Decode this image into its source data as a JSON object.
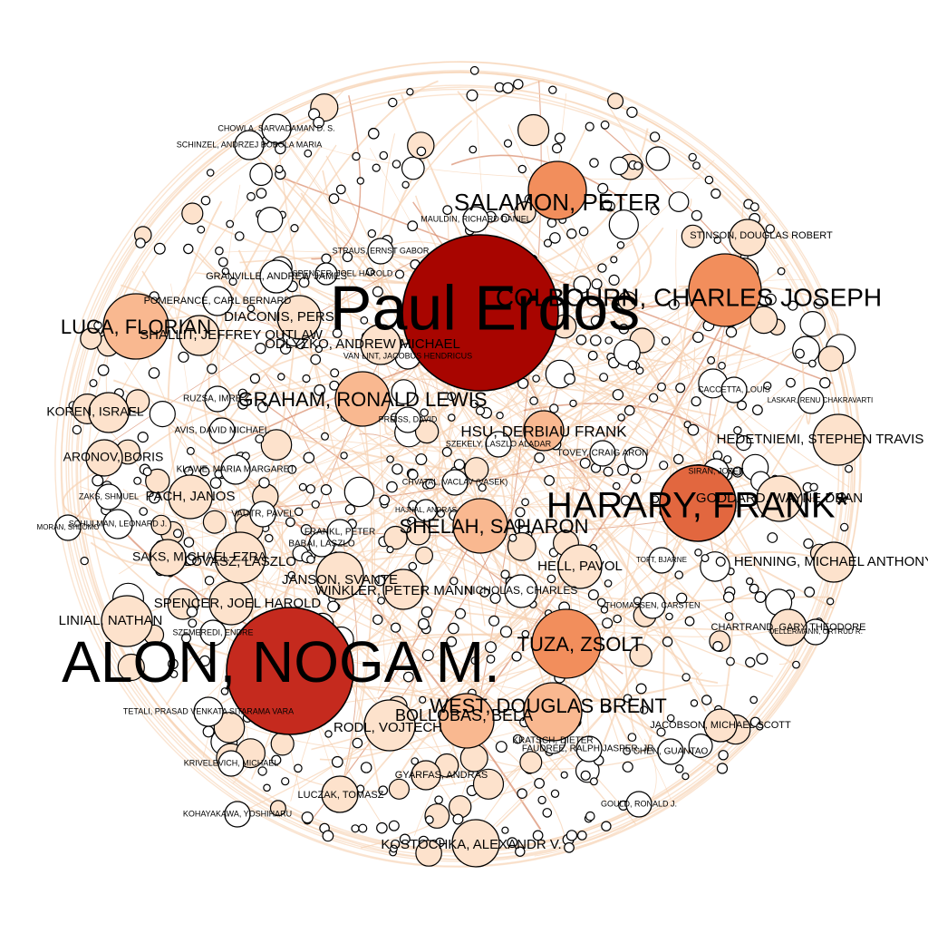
{
  "colors": {
    "background": "#ffffff",
    "edge": "#f6d2b2",
    "edge_strong": "#d98a6a",
    "node_stroke": "#000000",
    "level_0": "#ffffff",
    "level_1": "#fde2cc",
    "level_2": "#f9b890",
    "level_3": "#f28e5c",
    "level_4": "#e2673f",
    "level_5": "#c52a1e",
    "level_6": "#a80500"
  },
  "nodes": [
    {
      "id": "erdos",
      "label": "Paul Erdos",
      "level": 6
    },
    {
      "id": "alon",
      "label": "ALON, NOGA M.",
      "level": 5
    },
    {
      "id": "harary",
      "label": "HARARY, FRANK*",
      "level": 4
    },
    {
      "id": "colbourn",
      "label": "COLBOURN, CHARLES JOSEPH",
      "level": 3
    },
    {
      "id": "salamon",
      "label": "SALAMON, PETER",
      "level": 3
    },
    {
      "id": "graham",
      "label": "GRAHAM, RONALD LEWIS",
      "level": 2
    },
    {
      "id": "shelah",
      "label": "SHELAH, SAHARON",
      "level": 2
    },
    {
      "id": "tuza",
      "label": "TUZA, ZSOLT",
      "level": 3
    },
    {
      "id": "luca",
      "label": "LUCA, FLORIAN",
      "level": 2
    },
    {
      "id": "west",
      "label": "WEST, DOUGLAS BRENT",
      "level": 2
    },
    {
      "id": "bollobas",
      "label": "BOLLOBAS, BELA",
      "level": 2
    },
    {
      "id": "hsu",
      "label": "HSU, DERBIAU FRANK",
      "level": 2
    },
    {
      "id": "hedetniemi",
      "label": "HEDETNIEMI, STEPHEN TRAVIS",
      "level": 1
    },
    {
      "id": "goddard",
      "label": "GODDARD, WAYNE DEAN",
      "level": 1
    },
    {
      "id": "hell",
      "label": "HELL, PAVOL",
      "level": 1
    },
    {
      "id": "henning",
      "label": "HENNING, MICHAEL ANTHONY",
      "level": 1
    },
    {
      "id": "linial",
      "label": "LINIAL, NATHAN",
      "level": 1
    },
    {
      "id": "spencer",
      "label": "SPENCER, JOEL HAROLD",
      "level": 1
    },
    {
      "id": "janson",
      "label": "JANSON, SVANTE",
      "level": 1
    },
    {
      "id": "winkler",
      "label": "WINKLER, PETER MANN",
      "level": 1
    },
    {
      "id": "lovasz",
      "label": "LOVASZ, LASZLO",
      "level": 1
    },
    {
      "id": "pach",
      "label": "PACH, JANOS",
      "level": 1
    },
    {
      "id": "kostochka",
      "label": "KOSTOCHKA, ALEXANDR V.",
      "level": 1
    },
    {
      "id": "rodl",
      "label": "RODL, VOJTECH",
      "level": 1
    },
    {
      "id": "odlyzko",
      "label": "ODLYZKO, ANDREW MICHAEL",
      "level": 1
    },
    {
      "id": "diaconis",
      "label": "DIACONIS, PERSI",
      "level": 1
    },
    {
      "id": "shallit",
      "label": "SHALLIT, JEFFREY OUTLAW",
      "level": 1
    },
    {
      "id": "koren",
      "label": "KOREN, ISRAEL",
      "level": 1
    },
    {
      "id": "aronov",
      "label": "ARONOV, BORIS",
      "level": 1
    },
    {
      "id": "saks",
      "label": "SAKS, MICHAEL EZRA",
      "level": 1
    },
    {
      "id": "luczak",
      "label": "LUCZAK, TOMASZ",
      "level": 1
    },
    {
      "id": "gyarfas",
      "label": "GYARFAS, ANDRAS",
      "level": 1
    },
    {
      "id": "chartrand",
      "label": "CHARTRAND, GARY THEODORE",
      "level": 1
    },
    {
      "id": "jacobson",
      "label": "JACOBSON, MICHAEL SCOTT",
      "level": 1
    },
    {
      "id": "stinson",
      "label": "STINSON, DOUGLAS ROBERT",
      "level": 1
    },
    {
      "id": "laskar",
      "label": "LASKAR, RENU CHAKRAVARTI",
      "level": 0
    },
    {
      "id": "nicholas",
      "label": "NICHOLAS, CHARLES",
      "level": 0
    },
    {
      "id": "chvatal",
      "label": "CHVATAL, VACLAV (VASEK)",
      "level": 0
    },
    {
      "id": "krivelevich",
      "label": "KRIVELEVICH, MICHAEL",
      "level": 0
    },
    {
      "id": "kohayakawa",
      "label": "KOHAYAKAWA, YOSHIHARU",
      "level": 0
    },
    {
      "id": "tetali",
      "label": "TETALI, PRASAD VENKATA SITARAMA VARA",
      "level": 0
    },
    {
      "id": "szemeredi",
      "label": "SZEMEREDI, ENDRE",
      "level": 0
    },
    {
      "id": "moran",
      "label": "MORAN, SHLOMO",
      "level": 0
    },
    {
      "id": "schulman",
      "label": "SCHULMAN, LEONARD J.",
      "level": 0
    },
    {
      "id": "zaks",
      "label": "ZAKS, SHMUEL",
      "level": 0
    },
    {
      "id": "klawe",
      "label": "KLAWE, MARIA MARGARET",
      "level": 0
    },
    {
      "id": "chowla",
      "label": "CHOWLA, SARVADAMAN D. S.",
      "level": 0
    },
    {
      "id": "schinzel",
      "label": "SCHINZEL, ANDRZEJ BOBOLA MARIA",
      "level": 0
    },
    {
      "id": "pomerance",
      "label": "POMERANCE, CARL BERNARD",
      "level": 0
    },
    {
      "id": "granville",
      "label": "GRANVILLE, ANDREW JAMES",
      "level": 0
    },
    {
      "id": "ruzsa",
      "label": "RUZSA, IMRE Z.",
      "level": 0
    },
    {
      "id": "vanlint",
      "label": "VAN LINT, JACOBUS HENDRICUS",
      "level": 0
    },
    {
      "id": "straus",
      "label": "STRAUS, ERNST GABOR",
      "level": 0
    },
    {
      "id": "maudlin",
      "label": "MAULDIN, RICHARD DANIEL",
      "level": 0
    },
    {
      "id": "spencer2",
      "label": "SPENCER, JOEL HAROLD",
      "level": 0
    },
    {
      "id": "sirans",
      "label": "SIRAN, JOZEF",
      "level": 0
    },
    {
      "id": "caccetta",
      "label": "CACCETTA, LOUIS",
      "level": 0
    },
    {
      "id": "toft",
      "label": "TOFT, BJARNE",
      "level": 0
    },
    {
      "id": "thomassen",
      "label": "THOMASSEN, CARSTEN",
      "level": 0
    },
    {
      "id": "oellermann",
      "label": "OELLERMANN, ORTRUD R.",
      "level": 0
    },
    {
      "id": "gould",
      "label": "GOULD, RONALD J.",
      "level": 0
    },
    {
      "id": "chen",
      "label": "CHEN, GUANTAO",
      "level": 0
    },
    {
      "id": "faudree",
      "label": "FAUDREE, RALPH JASPER, JR.",
      "level": 0
    },
    {
      "id": "kratsch",
      "label": "KRATSCH, DIETER",
      "level": 0
    },
    {
      "id": "tovey",
      "label": "TOVEY, CRAIG ARON",
      "level": 0
    },
    {
      "id": "szekely",
      "label": "SZEKELY, LASZLO ALADAR",
      "level": 0
    },
    {
      "id": "preiss",
      "label": "PREISS, DAVID",
      "level": 0
    },
    {
      "id": "babai",
      "label": "BABAI, LASZLO",
      "level": 0
    },
    {
      "id": "frankl",
      "label": "FRANKL, PETER",
      "level": 0
    },
    {
      "id": "vautr",
      "label": "VAUTR, PAVEL",
      "level": 0
    },
    {
      "id": "avis",
      "label": "AVIS, DAVID MICHAEL",
      "level": 0
    },
    {
      "id": "hajnal",
      "label": "HAJNAL, ANDRAS",
      "level": 0
    }
  ]
}
